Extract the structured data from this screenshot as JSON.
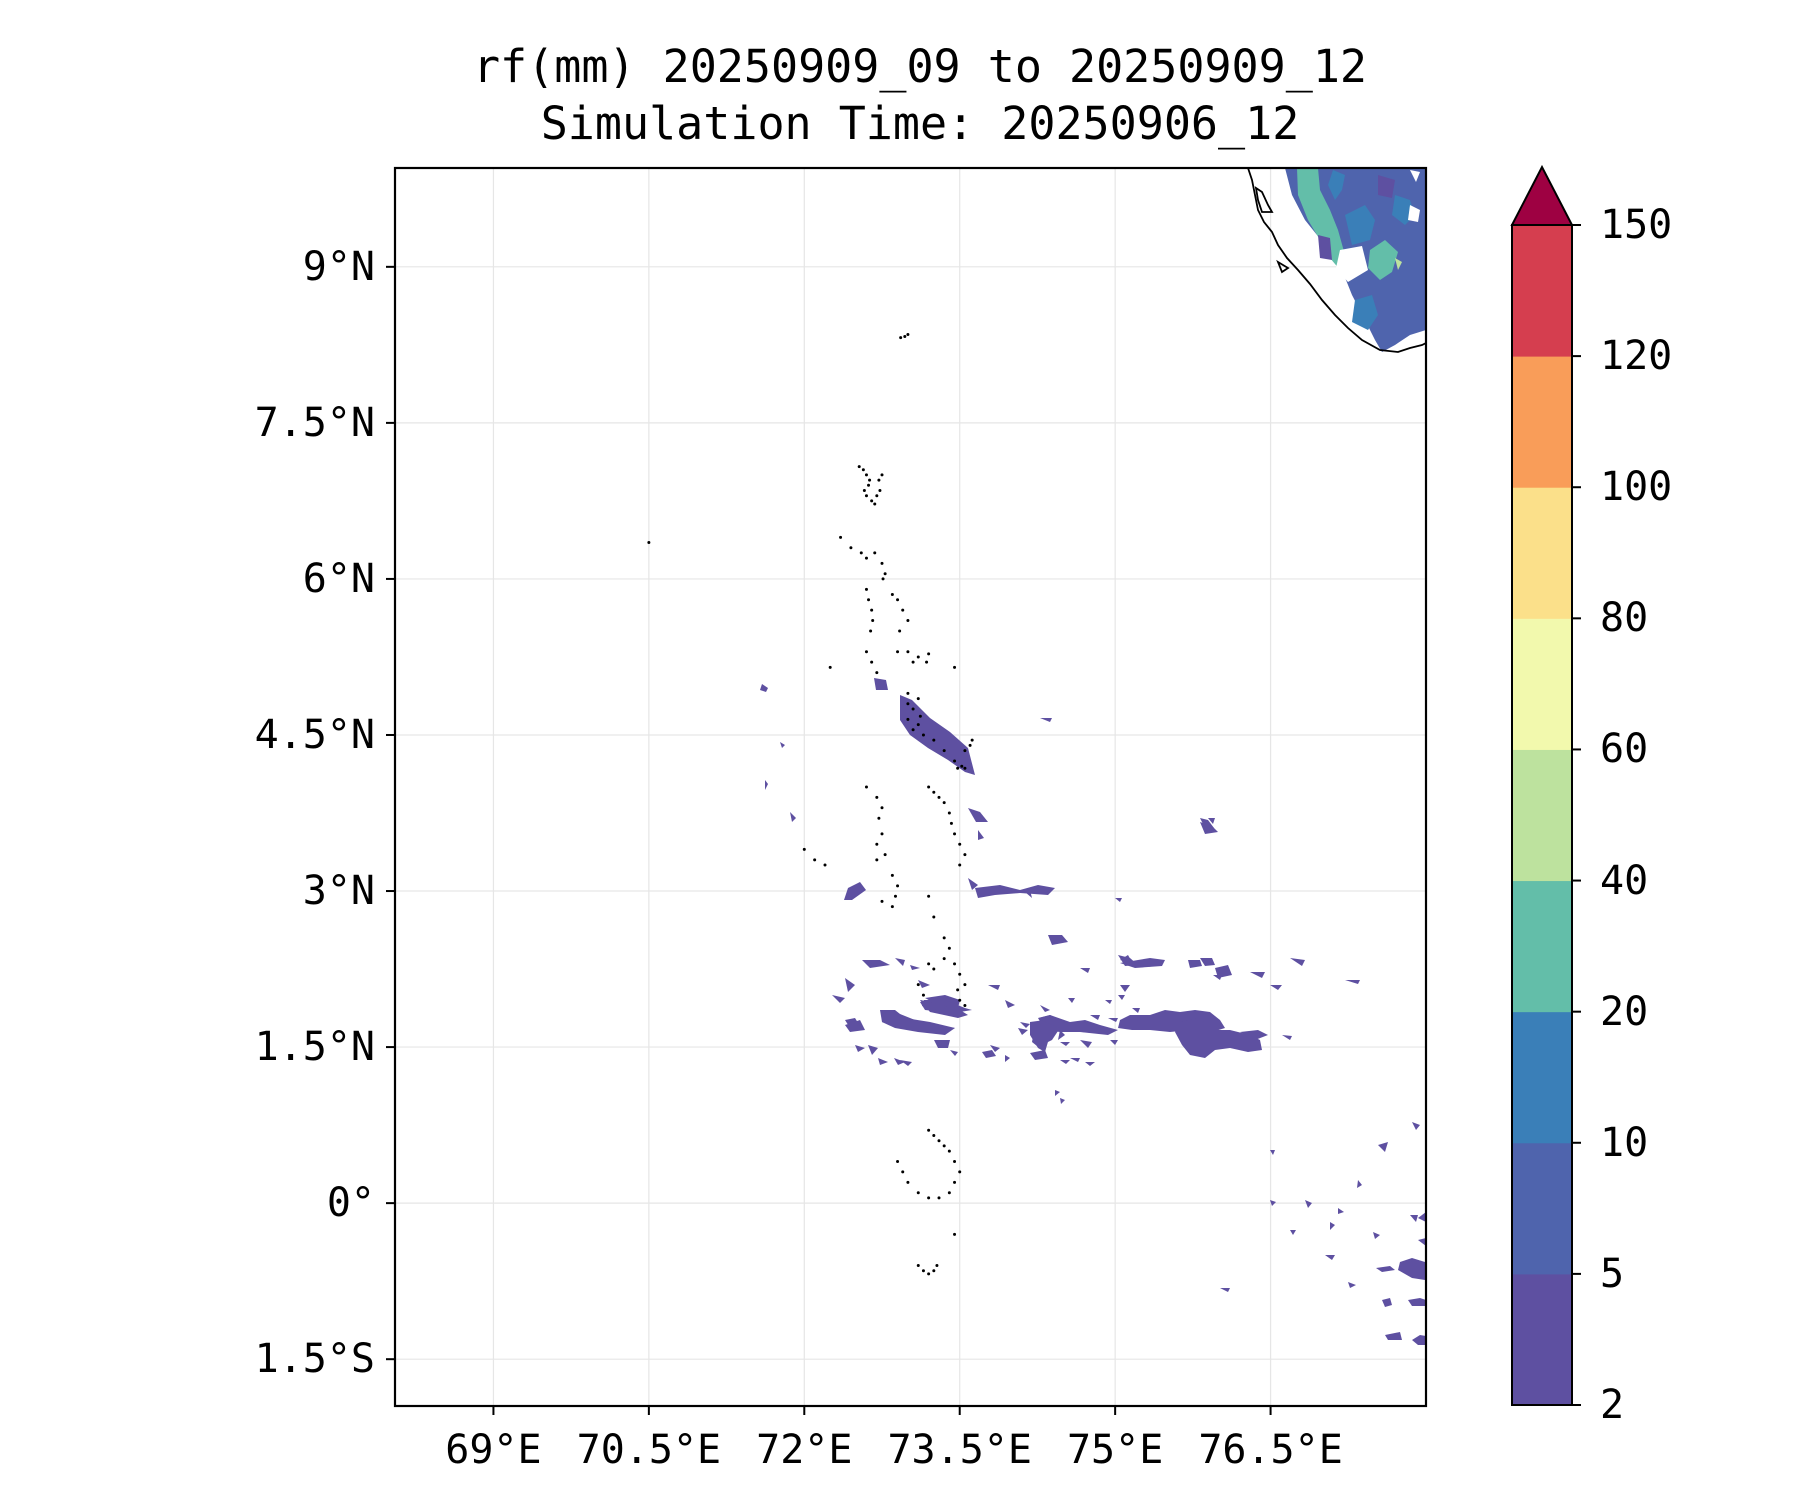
{
  "title": {
    "line1": "rf(mm) 20250909_09 to 20250909_12",
    "line2": "Simulation Time: 20250906_12"
  },
  "axes": {
    "lon_range": [
      68.05,
      78.0
    ],
    "lat_range": [
      -1.95,
      9.95
    ],
    "lon_ticks": [
      {
        "value": 69.0,
        "label": "69°E"
      },
      {
        "value": 70.5,
        "label": "70.5°E"
      },
      {
        "value": 72.0,
        "label": "72°E"
      },
      {
        "value": 73.5,
        "label": "73.5°E"
      },
      {
        "value": 75.0,
        "label": "75°E"
      },
      {
        "value": 76.5,
        "label": "76.5°E"
      }
    ],
    "lat_ticks": [
      {
        "value": 9.0,
        "label": "9°N"
      },
      {
        "value": 7.5,
        "label": "7.5°N"
      },
      {
        "value": 6.0,
        "label": "6°N"
      },
      {
        "value": 4.5,
        "label": "4.5°N"
      },
      {
        "value": 3.0,
        "label": "3°N"
      },
      {
        "value": 1.5,
        "label": "1.5°N"
      },
      {
        "value": 0.0,
        "label": "0°"
      },
      {
        "value": -1.5,
        "label": "1.5°S"
      }
    ],
    "grid": true
  },
  "colorbar": {
    "levels": [
      "2",
      "5",
      "10",
      "20",
      "40",
      "60",
      "80",
      "100",
      "120",
      "150"
    ],
    "colors": [
      "#5e50a1",
      "#4f64ad",
      "#3a7fb8",
      "#63bea9",
      "#bde29e",
      "#f2f9ad",
      "#fbe08a",
      "#f99d59",
      "#d53e4f"
    ],
    "extend_color": "#9e0142",
    "extend": "max"
  },
  "chart_data": {
    "type": "heatmap",
    "title": "rf(mm) 20250909_09 to 20250909_12 Simulation Time: 20250906_12",
    "variable": "rf(mm)",
    "xlim": [
      68.05,
      78.0
    ],
    "ylim": [
      -1.95,
      9.95
    ],
    "rain_patches": [
      {
        "lon": 73.1,
        "lat": 4.55,
        "level": "2-5"
      },
      {
        "lon": 73.6,
        "lat": 1.9,
        "level": "2-5"
      },
      {
        "lon": 73.0,
        "lat": 1.7,
        "level": "2-5"
      },
      {
        "lon": 72.7,
        "lat": 1.2,
        "level": "2-5"
      },
      {
        "lon": 74.6,
        "lat": 1.65,
        "level": "2-5"
      },
      {
        "lon": 75.9,
        "lat": 1.95,
        "level": "2-5"
      },
      {
        "lon": 74.2,
        "lat": 3.0,
        "level": "2-5"
      },
      {
        "lon": 72.5,
        "lat": 2.95,
        "level": "2-5"
      },
      {
        "lon": 75.2,
        "lat": 2.35,
        "level": "2-5"
      },
      {
        "lon": 77.2,
        "lat": -0.6,
        "level": "2-5"
      },
      {
        "lon": 77.4,
        "lat": 9.1,
        "level": "5-40"
      }
    ]
  }
}
